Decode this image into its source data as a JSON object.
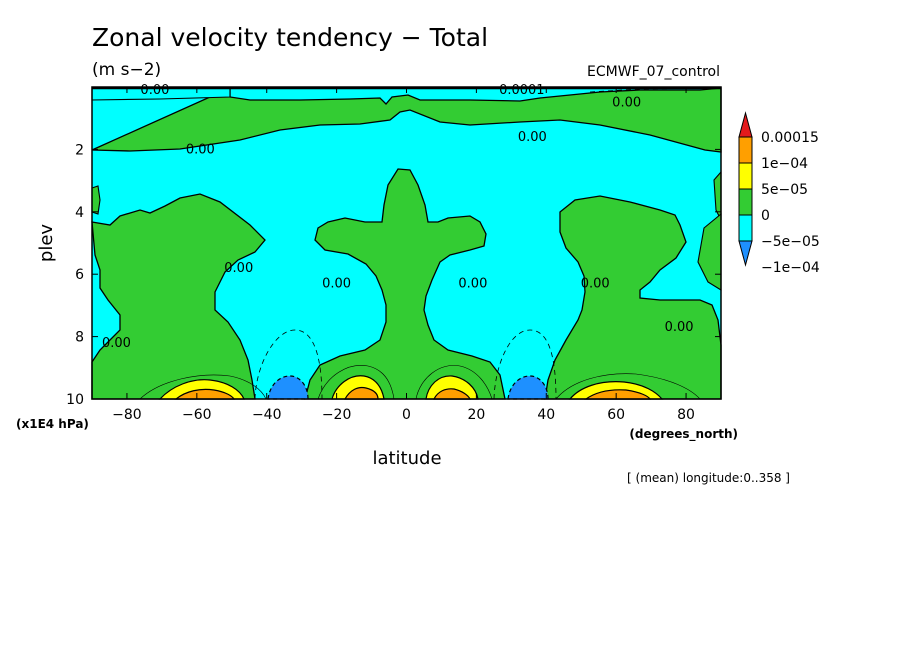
{
  "chart_data": {
    "type": "heatmap",
    "title": "Zonal velocity tendency − Total",
    "units": "(m s−2)",
    "dataset": "ECMWF_07_control",
    "xlabel": "latitude",
    "xunits": "(degrees_north)",
    "ylabel": "plev",
    "yunits": "(x1E4 hPa)",
    "averaging_note": "[ (mean) longitude:0..358 ]",
    "xlim": [
      -90,
      90
    ],
    "ylim": [
      0,
      10
    ],
    "y_inverted": true,
    "x_ticks": [
      -80,
      -60,
      -40,
      -20,
      0,
      20,
      40,
      60,
      80
    ],
    "x_tick_labels": [
      "−80",
      "−60",
      "−40",
      "−20",
      "0",
      "20",
      "40",
      "60",
      "80"
    ],
    "y_ticks": [
      2,
      4,
      6,
      8,
      10
    ],
    "y_tick_labels": [
      "2",
      "4",
      "6",
      "8",
      "10"
    ],
    "colorbar_labels": [
      "0.00015",
      "1e−04",
      "5e−05",
      "0",
      "−5e−05",
      "−1e−04"
    ],
    "colorbar_colors": [
      "#e41a1c",
      "#ff9f00",
      "#ffff00",
      "#33cc33",
      "#00ffff",
      "#1e90ff"
    ],
    "contour_labels": [
      {
        "text": "0.00",
        "lat": -72,
        "plev": 0.1
      },
      {
        "text": "0.0001",
        "lat": 33,
        "plev": 0.1
      },
      {
        "text": "0.00",
        "lat": 63,
        "plev": 0.5
      },
      {
        "text": "0.00",
        "lat": 36,
        "plev": 1.6
      },
      {
        "text": "0.00",
        "lat": -59,
        "plev": 2.0
      },
      {
        "text": "0.00",
        "lat": -48,
        "plev": 5.8
      },
      {
        "text": "0.00",
        "lat": -20,
        "plev": 6.3
      },
      {
        "text": "0.00",
        "lat": 19,
        "plev": 6.3
      },
      {
        "text": "0.00",
        "lat": 54,
        "plev": 6.3
      },
      {
        "text": "0.00",
        "lat": 78,
        "plev": 7.7
      },
      {
        "text": "0.00",
        "lat": -83,
        "plev": 8.2
      }
    ]
  }
}
